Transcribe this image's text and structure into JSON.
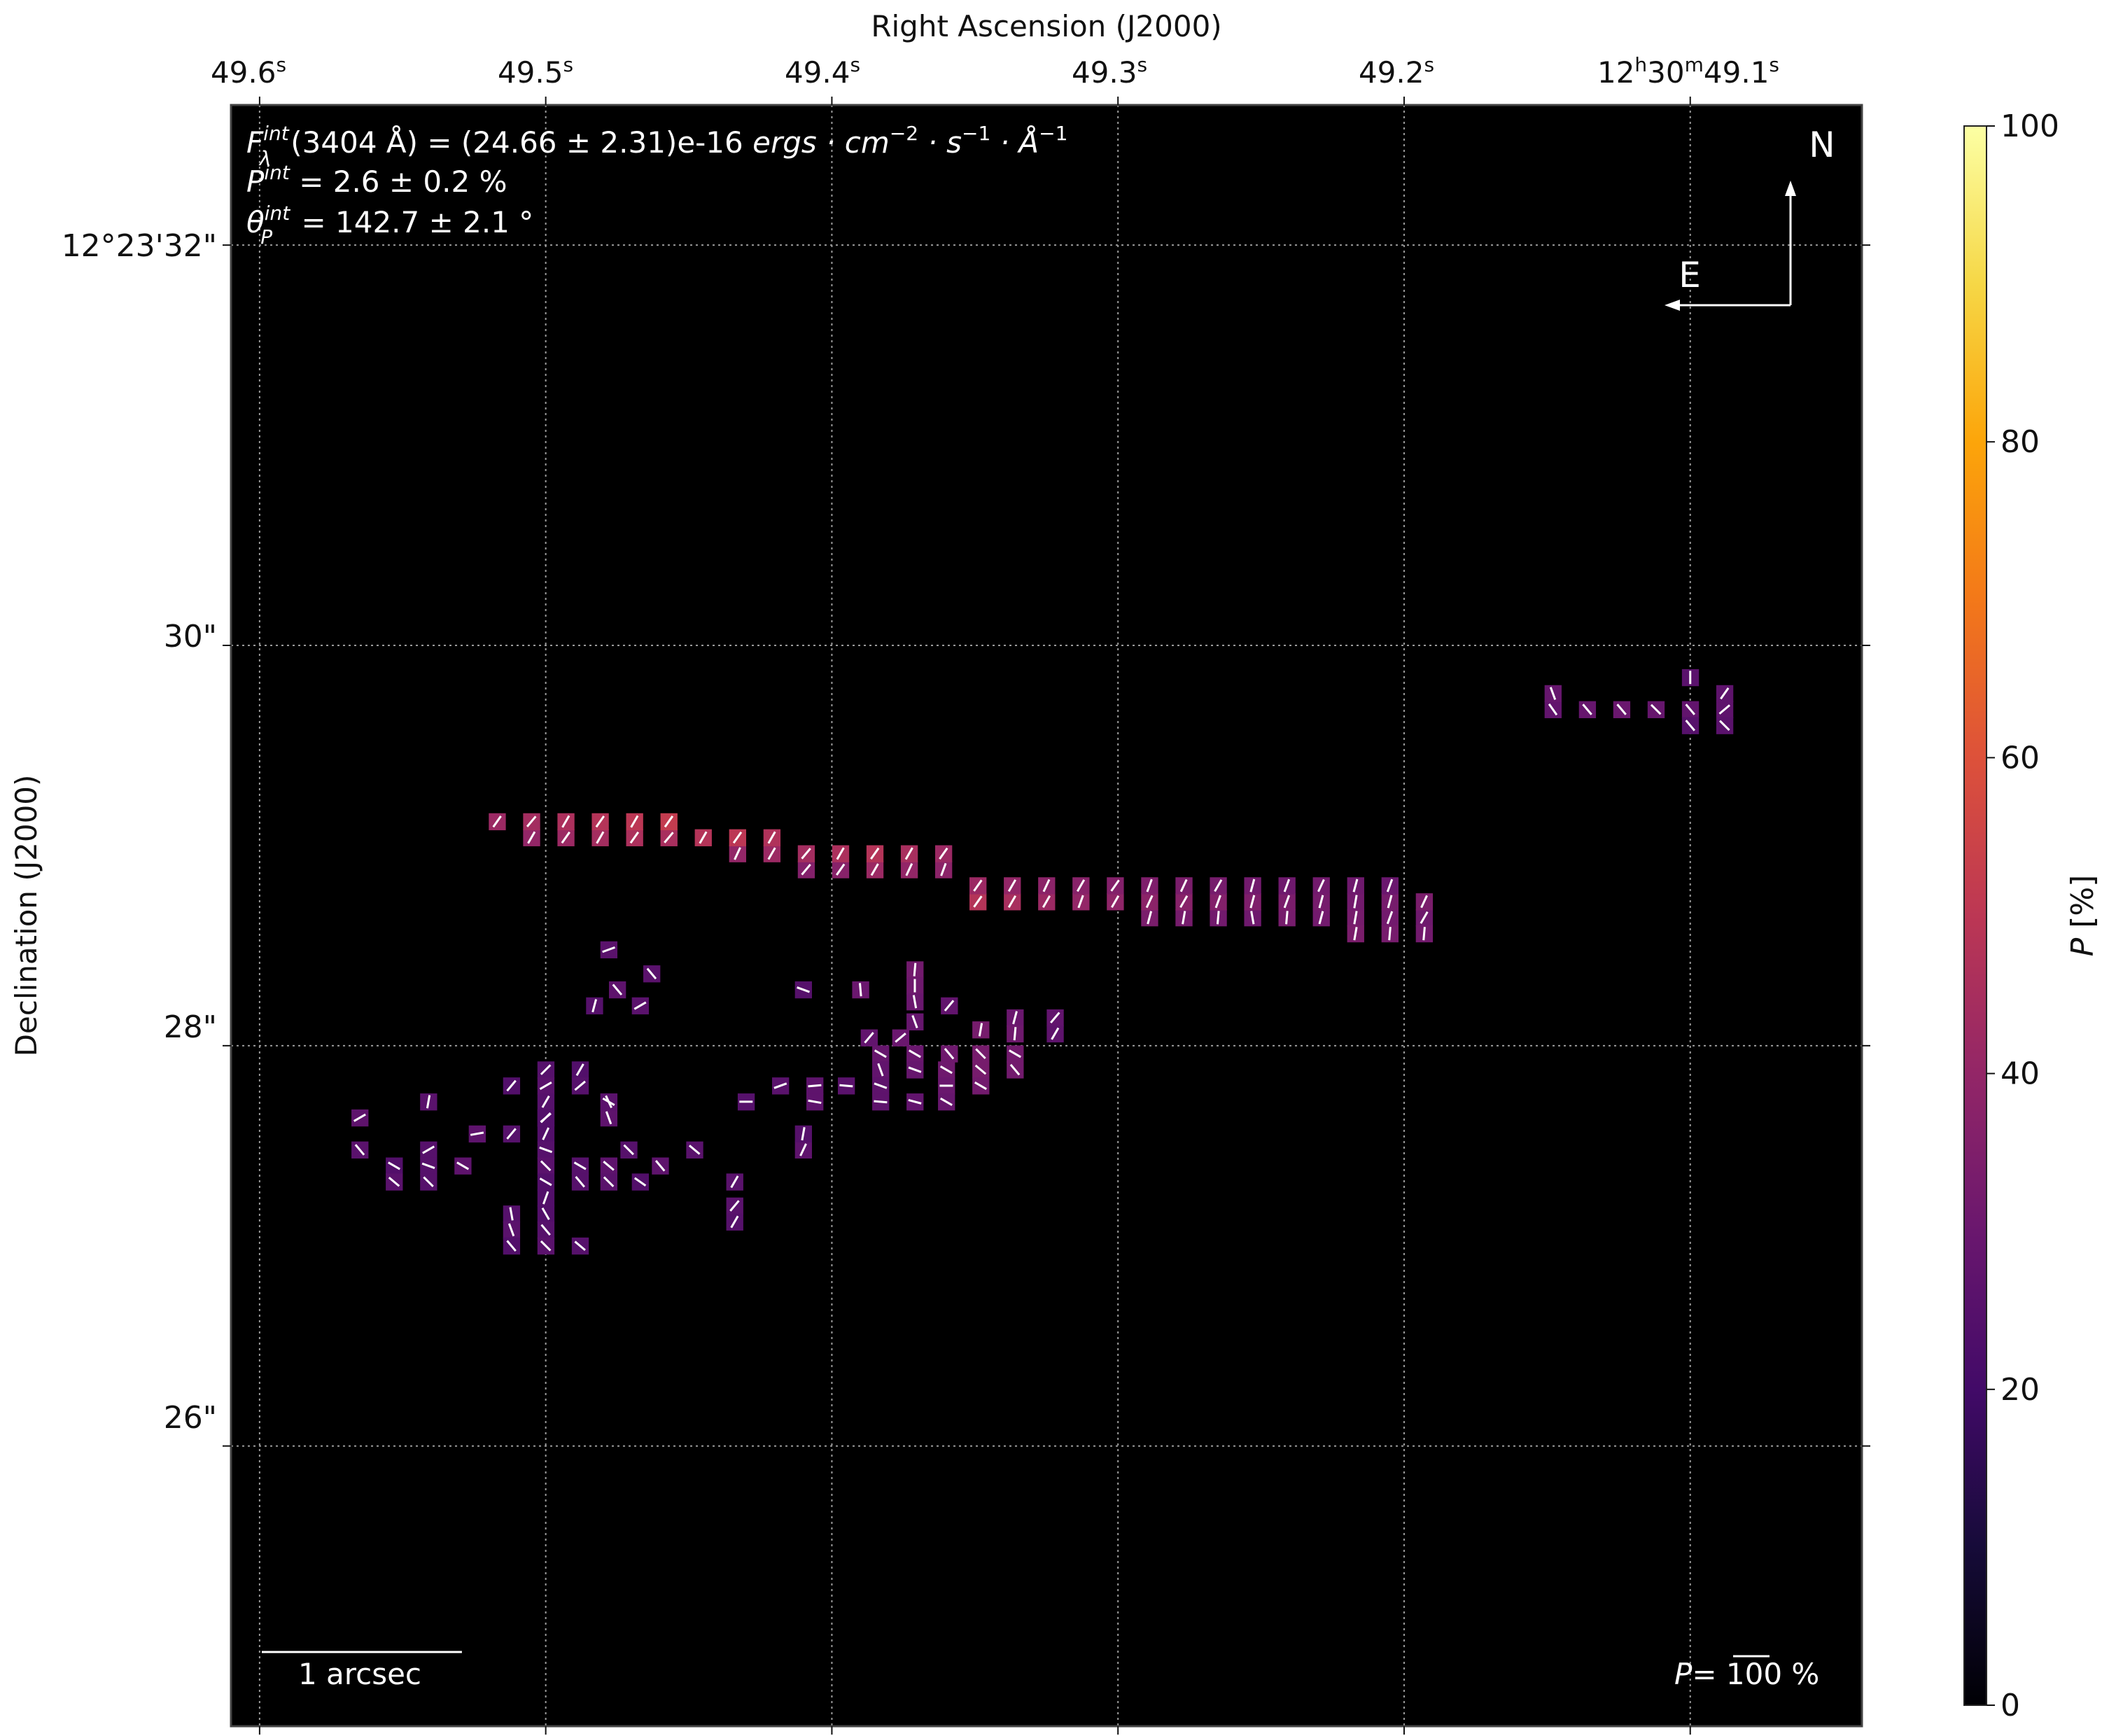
{
  "chart_data": {
    "type": "heatmap",
    "title": "",
    "xlabel": "Right Ascension (J2000)",
    "ylabel": "Declination (J2000)",
    "x_ticks": [
      {
        "value": 49.6,
        "sup_s": "s",
        "label": "49.6"
      },
      {
        "value": 49.5,
        "sup_s": "s",
        "label": "49.5"
      },
      {
        "value": 49.4,
        "sup_s": "s",
        "label": "49.4"
      },
      {
        "value": 49.3,
        "sup_s": "s",
        "label": "49.3"
      },
      {
        "value": 49.2,
        "sup_s": "s",
        "label": "49.2"
      },
      {
        "value": 49.1,
        "label_h": "12",
        "sup_h": "h",
        "label_m": "30",
        "sup_m": "m",
        "label_s": "49.1",
        "sup_s": "s"
      }
    ],
    "y_ticks": [
      {
        "value": 32,
        "label": "12°23'32\""
      },
      {
        "value": 30,
        "label": "30\""
      },
      {
        "value": 28,
        "label": "28\""
      },
      {
        "value": 26,
        "label": "26\""
      }
    ],
    "x_range_seconds": [
      49.61,
      49.04
    ],
    "y_range_arcsec": [
      24.6,
      32.7
    ],
    "grid": true,
    "background_color": "#000000",
    "annotations": {
      "flux_line": {
        "F": "F",
        "sub": "λ",
        "sup": "int",
        "rest": "(3404 Å) = (24.66 ± 2.31)e-16 ",
        "units": "ergs · cm",
        "exp1": "−2",
        "mid1": " · s",
        "exp2": "−1",
        "mid2": " · Å",
        "exp3": "−1"
      },
      "pol_line": {
        "P": "P",
        "sup": "int",
        "rest": " = 2.6 ± 0.2 %"
      },
      "angle_line": {
        "theta": "θ",
        "sub": "P",
        "sup": "int",
        "rest": " = 142.7 ± 2.1 °"
      },
      "north": "N",
      "east": "E",
      "scalebar_label": "1 arcsec",
      "scalebar_arcsec": 1,
      "vector_scale": {
        "P": "P",
        "rest": "= 100 %"
      }
    },
    "colorbar": {
      "label_P": "P",
      "label_unit": " [%]",
      "colormap": "inferno",
      "range": [
        0,
        100
      ],
      "ticks": [
        {
          "value": 0,
          "label": "0"
        },
        {
          "value": 20,
          "label": "20"
        },
        {
          "value": 40,
          "label": "40"
        },
        {
          "value": 60,
          "label": "60"
        },
        {
          "value": 80,
          "label": "80"
        },
        {
          "value": 100,
          "label": "100"
        }
      ]
    },
    "pixel_size_arcsec": 0.083,
    "pixels": [
      [
        49.478,
        28.48,
        26,
        110
      ],
      [
        49.475,
        28.28,
        27,
        40
      ],
      [
        49.467,
        28.2,
        26,
        120
      ],
      [
        49.483,
        28.2,
        25,
        165
      ],
      [
        49.463,
        28.36,
        26,
        40
      ],
      [
        49.41,
        28.28,
        25,
        70
      ],
      [
        49.39,
        28.28,
        30,
        5
      ],
      [
        49.371,
        28.38,
        32,
        175
      ],
      [
        49.371,
        28.3,
        31,
        0
      ],
      [
        49.371,
        28.22,
        30,
        10
      ],
      [
        49.359,
        28.2,
        28,
        140
      ],
      [
        49.371,
        28.12,
        29,
        20
      ],
      [
        49.376,
        28.04,
        30,
        130
      ],
      [
        49.387,
        28.04,
        28,
        140
      ],
      [
        49.348,
        28.08,
        33,
        170
      ],
      [
        49.336,
        28.14,
        30,
        165
      ],
      [
        49.336,
        28.06,
        31,
        175
      ],
      [
        49.322,
        28.14,
        28,
        140
      ],
      [
        49.322,
        28.06,
        27,
        150
      ],
      [
        49.383,
        27.96,
        29,
        60
      ],
      [
        49.371,
        27.96,
        30,
        60
      ],
      [
        49.359,
        27.96,
        31,
        40
      ],
      [
        49.348,
        27.96,
        33,
        45
      ],
      [
        49.336,
        27.96,
        32,
        60
      ],
      [
        49.348,
        27.88,
        33,
        50
      ],
      [
        49.336,
        27.88,
        32,
        40
      ],
      [
        49.36,
        27.88,
        31,
        60
      ],
      [
        49.371,
        27.88,
        29,
        70
      ],
      [
        49.383,
        27.88,
        28,
        20
      ],
      [
        49.348,
        27.8,
        32,
        60
      ],
      [
        49.36,
        27.8,
        30,
        90
      ],
      [
        49.383,
        27.8,
        27,
        70
      ],
      [
        49.395,
        27.8,
        26,
        85
      ],
      [
        49.406,
        27.8,
        27,
        95
      ],
      [
        49.418,
        27.8,
        26,
        110
      ],
      [
        49.43,
        27.72,
        25,
        90
      ],
      [
        49.406,
        27.72,
        27,
        80
      ],
      [
        49.383,
        27.72,
        27,
        85
      ],
      [
        49.36,
        27.72,
        29,
        60
      ],
      [
        49.371,
        27.72,
        28,
        75
      ],
      [
        49.5,
        27.88,
        25,
        135
      ],
      [
        49.488,
        27.88,
        24,
        150
      ],
      [
        49.488,
        27.8,
        25,
        130
      ],
      [
        49.5,
        27.8,
        26,
        120
      ],
      [
        49.512,
        27.8,
        24,
        140
      ],
      [
        49.5,
        27.72,
        25,
        150
      ],
      [
        49.478,
        27.72,
        26,
        60
      ],
      [
        49.5,
        27.64,
        26,
        130
      ],
      [
        49.512,
        27.56,
        25,
        140
      ],
      [
        49.5,
        27.56,
        24,
        155
      ],
      [
        49.524,
        27.56,
        27,
        100
      ],
      [
        49.5,
        27.48,
        25,
        70
      ],
      [
        49.5,
        27.4,
        26,
        45
      ],
      [
        49.488,
        27.4,
        25,
        60
      ],
      [
        49.478,
        27.4,
        27,
        50
      ],
      [
        49.467,
        27.32,
        24,
        55
      ],
      [
        49.478,
        27.32,
        26,
        45
      ],
      [
        49.5,
        27.32,
        24,
        60
      ],
      [
        49.488,
        27.32,
        25,
        40
      ],
      [
        49.478,
        27.64,
        27,
        20
      ],
      [
        49.478,
        27.72,
        26,
        25
      ],
      [
        49.5,
        27.64,
        24,
        135
      ],
      [
        49.541,
        27.48,
        25,
        120
      ],
      [
        49.553,
        27.4,
        24,
        60
      ],
      [
        49.541,
        27.4,
        25,
        70
      ],
      [
        49.529,
        27.4,
        27,
        60
      ],
      [
        49.553,
        27.32,
        26,
        50
      ],
      [
        49.541,
        27.32,
        25,
        45
      ],
      [
        49.565,
        27.48,
        26,
        40
      ],
      [
        49.565,
        27.64,
        27,
        120
      ],
      [
        49.541,
        27.72,
        26,
        170
      ],
      [
        49.41,
        27.48,
        27,
        155
      ],
      [
        49.41,
        27.56,
        25,
        170
      ],
      [
        49.434,
        27.2,
        26,
        140
      ],
      [
        49.434,
        27.12,
        25,
        150
      ],
      [
        49.5,
        27.16,
        24,
        30
      ],
      [
        49.512,
        27.16,
        25,
        10
      ],
      [
        49.5,
        27.08,
        25,
        40
      ],
      [
        49.512,
        27.08,
        26,
        20
      ],
      [
        49.5,
        27,
        26,
        45
      ],
      [
        49.488,
        27,
        25,
        50
      ],
      [
        49.512,
        27,
        24,
        40
      ],
      [
        49.5,
        27.24,
        24,
        160
      ],
      [
        49.46,
        27.4,
        27,
        40
      ],
      [
        49.448,
        27.48,
        26,
        50
      ],
      [
        49.471,
        27.48,
        25,
        45
      ],
      [
        49.434,
        27.32,
        26,
        150
      ],
      [
        49.277,
        28.64,
        33,
        170
      ],
      [
        49.289,
        28.64,
        34,
        165
      ],
      [
        49.265,
        28.64,
        32,
        175
      ],
      [
        49.253,
        28.64,
        31,
        10
      ],
      [
        49.241,
        28.64,
        33,
        175
      ],
      [
        49.229,
        28.64,
        32,
        165
      ],
      [
        49.217,
        28.64,
        33,
        170
      ],
      [
        49.205,
        28.64,
        32,
        160
      ],
      [
        49.193,
        28.64,
        31,
        150
      ],
      [
        49.193,
        28.72,
        34,
        155
      ],
      [
        49.205,
        28.72,
        33,
        165
      ],
      [
        49.217,
        28.72,
        32,
        170
      ],
      [
        49.229,
        28.72,
        33,
        165
      ],
      [
        49.241,
        28.72,
        34,
        160
      ],
      [
        49.253,
        28.72,
        35,
        165
      ],
      [
        49.265,
        28.72,
        36,
        160
      ],
      [
        49.277,
        28.72,
        37,
        150
      ],
      [
        49.289,
        28.72,
        38,
        155
      ],
      [
        49.301,
        28.72,
        39,
        150
      ],
      [
        49.313,
        28.72,
        40,
        160
      ],
      [
        49.325,
        28.72,
        42,
        150
      ],
      [
        49.337,
        28.72,
        45,
        150
      ],
      [
        49.349,
        28.72,
        48,
        145
      ],
      [
        49.325,
        28.8,
        38,
        155
      ],
      [
        49.313,
        28.8,
        37,
        150
      ],
      [
        49.301,
        28.8,
        36,
        145
      ],
      [
        49.289,
        28.8,
        35,
        160
      ],
      [
        49.277,
        28.8,
        34,
        155
      ],
      [
        49.265,
        28.8,
        33,
        150
      ],
      [
        49.253,
        28.8,
        32,
        165
      ],
      [
        49.241,
        28.8,
        31,
        160
      ],
      [
        49.229,
        28.8,
        32,
        155
      ],
      [
        49.217,
        28.8,
        31,
        165
      ],
      [
        49.205,
        28.8,
        30,
        160
      ],
      [
        49.337,
        28.8,
        40,
        150
      ],
      [
        49.349,
        28.8,
        42,
        145
      ],
      [
        49.205,
        28.56,
        33,
        175
      ],
      [
        49.217,
        28.56,
        34,
        170
      ],
      [
        49.193,
        28.56,
        32,
        175
      ],
      [
        49.361,
        28.88,
        38,
        160
      ],
      [
        49.373,
        28.88,
        40,
        155
      ],
      [
        49.385,
        28.88,
        42,
        150
      ],
      [
        49.397,
        28.88,
        37,
        145
      ],
      [
        49.409,
        28.88,
        36,
        140
      ],
      [
        49.361,
        28.96,
        42,
        145
      ],
      [
        49.373,
        28.96,
        45,
        150
      ],
      [
        49.385,
        28.96,
        48,
        145
      ],
      [
        49.397,
        28.96,
        46,
        150
      ],
      [
        49.409,
        28.96,
        44,
        140
      ],
      [
        49.421,
        28.96,
        42,
        150
      ],
      [
        49.433,
        28.96,
        40,
        155
      ],
      [
        49.421,
        29.04,
        47,
        150
      ],
      [
        49.433,
        29.04,
        50,
        145
      ],
      [
        49.445,
        29.04,
        48,
        150
      ],
      [
        49.457,
        29.04,
        45,
        140
      ],
      [
        49.469,
        29.04,
        46,
        145
      ],
      [
        49.481,
        29.04,
        44,
        150
      ],
      [
        49.493,
        29.04,
        42,
        145
      ],
      [
        49.505,
        29.04,
        40,
        150
      ],
      [
        49.457,
        29.12,
        52,
        145
      ],
      [
        49.469,
        29.12,
        50,
        150
      ],
      [
        49.481,
        29.12,
        48,
        145
      ],
      [
        49.493,
        29.12,
        46,
        150
      ],
      [
        49.505,
        29.12,
        44,
        140
      ],
      [
        49.517,
        29.12,
        42,
        145
      ],
      [
        49.088,
        29.68,
        27,
        130
      ],
      [
        49.1,
        29.68,
        28,
        40
      ],
      [
        49.112,
        29.68,
        29,
        45
      ],
      [
        49.124,
        29.68,
        30,
        40
      ],
      [
        49.136,
        29.68,
        29,
        40
      ],
      [
        49.148,
        29.68,
        28,
        35
      ],
      [
        49.088,
        29.6,
        26,
        45
      ],
      [
        49.1,
        29.6,
        25,
        40
      ],
      [
        49.088,
        29.76,
        27,
        145
      ],
      [
        49.148,
        29.76,
        29,
        20
      ],
      [
        49.1,
        29.84,
        26,
        0
      ]
    ]
  }
}
